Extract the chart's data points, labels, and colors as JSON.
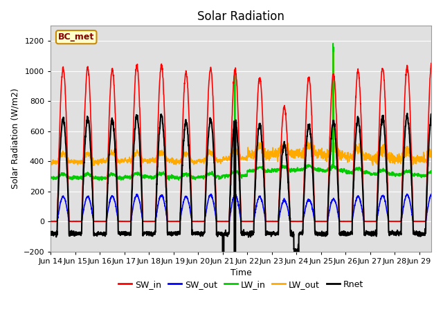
{
  "title": "Solar Radiation",
  "xlabel": "Time",
  "ylabel": "Solar Radiation (W/m2)",
  "ylim": [
    -200,
    1300
  ],
  "xlim": [
    0,
    15.5
  ],
  "xtick_labels": [
    "Jun 14",
    "Jun 15",
    "Jun 16",
    "Jun 17",
    "Jun 18",
    "Jun 19",
    "Jun 20",
    "Jun 21",
    "Jun 22",
    "Jun 23",
    "Jun 24",
    "Jun 25",
    "Jun 26",
    "Jun 27",
    "Jun 28",
    "Jun 29"
  ],
  "legend_labels": [
    "SW_in",
    "SW_out",
    "LW_in",
    "LW_out",
    "Rnet"
  ],
  "line_colors": [
    "#ff0000",
    "#0000ff",
    "#00cc00",
    "#ffaa00",
    "#000000"
  ],
  "line_widths": [
    1.2,
    1.2,
    1.2,
    1.2,
    1.5
  ],
  "box_label": "BC_met",
  "box_bg": "#ffffcc",
  "box_edge": "#cc8800",
  "box_text_color": "#880000",
  "title_fontsize": 12,
  "label_fontsize": 9,
  "tick_fontsize": 8,
  "legend_fontsize": 9,
  "n_days": 15.5,
  "pts_per_day": 144,
  "sw_in_peaks": [
    1020,
    1020,
    1010,
    1040,
    1040,
    990,
    1020,
    1010,
    960,
    760,
    960,
    980,
    1000,
    1020,
    1030,
    1050
  ],
  "sw_out_peaks": [
    165,
    165,
    170,
    175,
    175,
    165,
    175,
    175,
    165,
    140,
    145,
    150,
    165,
    170,
    175,
    180
  ],
  "lw_in_base": [
    290,
    290,
    290,
    295,
    295,
    290,
    295,
    305,
    335,
    340,
    345,
    340,
    325,
    315,
    310,
    305
  ],
  "lw_out_base": [
    395,
    395,
    400,
    405,
    405,
    395,
    405,
    420,
    445,
    450,
    455,
    445,
    430,
    420,
    415,
    410
  ],
  "rnet_peaks": [
    680,
    680,
    670,
    700,
    700,
    660,
    680,
    680,
    640,
    510,
    640,
    660,
    680,
    690,
    700,
    710
  ]
}
